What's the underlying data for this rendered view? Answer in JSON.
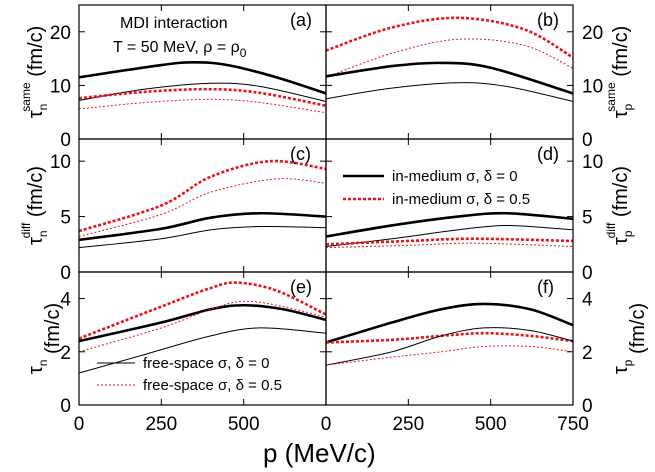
{
  "chart_data": {
    "type": "line",
    "x_axis": {
      "label": "p (MeV/c)",
      "range": [
        0,
        750
      ],
      "ticks": [
        0,
        250,
        500,
        750
      ],
      "left_col_tick_labels": [
        "0",
        "250",
        "500"
      ],
      "right_col_tick_labels": [
        "0",
        "250",
        "500",
        "750"
      ]
    },
    "annotation": {
      "line1": "MDI interaction",
      "line2": "T = 50 MeV, ρ = ρ",
      "line2_sub": "0"
    },
    "legend": {
      "in_medium_thick": "in-medium σ, δ = 0",
      "in_medium_dash": "in-medium σ, δ = 0.5",
      "free_thin": "free-space σ, δ = 0",
      "free_dash": "free-space σ, δ = 0.5"
    },
    "rows": [
      {
        "ylim": [
          0,
          25
        ],
        "yticks": [
          0,
          10,
          20
        ],
        "ytick_labels": [
          "0",
          "10",
          "20"
        ],
        "left_ylabel": {
          "main": "τ",
          "sub": "n",
          "sup": "same",
          "unit": " (fm/c)"
        },
        "right_ylabel": {
          "main": "τ",
          "sub": "p",
          "sup": "same",
          "unit": " (fm/c)"
        }
      },
      {
        "ylim": [
          0,
          12
        ],
        "yticks": [
          0,
          5,
          10
        ],
        "ytick_labels": [
          "0",
          "5",
          "10"
        ],
        "left_ylabel": {
          "main": "τ",
          "sub": "n",
          "sup": "diff",
          "unit": " (fm/c)"
        },
        "right_ylabel": {
          "main": "τ",
          "sub": "p",
          "sup": "diff",
          "unit": " (fm/c)"
        }
      },
      {
        "ylim": [
          0,
          5
        ],
        "yticks": [
          0,
          2,
          4
        ],
        "ytick_labels": [
          "0",
          "2",
          "4"
        ],
        "left_ylabel": {
          "main": "τ",
          "sub": "n",
          "sup": "",
          "unit": " (fm/c)"
        },
        "right_ylabel": {
          "main": "τ",
          "sub": "p",
          "sup": "",
          "unit": " (fm/c)"
        }
      }
    ],
    "panels": [
      {
        "label": "(a)",
        "row": 0,
        "col": 0,
        "series": [
          {
            "style": "in_medium_thick",
            "x": [
              0,
              250,
              350,
              450,
              600,
              750
            ],
            "y": [
              11.5,
              13.8,
              14.3,
              13.8,
              11.5,
              8.5
            ]
          },
          {
            "style": "free_thin",
            "x": [
              0,
              200,
              400,
              550,
              750
            ],
            "y": [
              7.2,
              9.3,
              10.4,
              9.8,
              7.0
            ]
          },
          {
            "style": "in_medium_dash",
            "x": [
              0,
              200,
              400,
              550,
              750
            ],
            "y": [
              7.6,
              8.8,
              9.3,
              8.6,
              6.2
            ]
          },
          {
            "style": "free_dash",
            "x": [
              0,
              200,
              400,
              550,
              750
            ],
            "y": [
              5.6,
              6.8,
              7.4,
              6.8,
              4.9
            ]
          }
        ]
      },
      {
        "label": "(b)",
        "row": 0,
        "col": 1,
        "series": [
          {
            "style": "in_medium_dash",
            "x": [
              0,
              200,
              400,
              600,
              750
            ],
            "y": [
              16.5,
              20.8,
              22.6,
              20.5,
              15.2
            ]
          },
          {
            "style": "free_dash",
            "x": [
              0,
              200,
              400,
              600,
              750
            ],
            "y": [
              11.5,
              16.0,
              18.6,
              17.5,
              13.2
            ]
          },
          {
            "style": "in_medium_thick",
            "x": [
              0,
              200,
              350,
              500,
              750
            ],
            "y": [
              11.7,
              13.6,
              14.2,
              13.3,
              8.5
            ]
          },
          {
            "style": "free_thin",
            "x": [
              0,
              200,
              400,
              550,
              750
            ],
            "y": [
              7.5,
              9.5,
              10.5,
              9.8,
              7.0
            ]
          }
        ]
      },
      {
        "label": "(c)",
        "row": 1,
        "col": 0,
        "series": [
          {
            "style": "in_medium_dash",
            "x": [
              0,
              250,
              400,
              580,
              750
            ],
            "y": [
              3.7,
              6.0,
              8.6,
              10.0,
              9.3
            ]
          },
          {
            "style": "free_dash",
            "x": [
              0,
              250,
              400,
              600,
              750
            ],
            "y": [
              3.2,
              5.2,
              7.2,
              8.4,
              8.0
            ]
          },
          {
            "style": "in_medium_thick",
            "x": [
              0,
              250,
              400,
              550,
              750
            ],
            "y": [
              2.9,
              3.9,
              4.9,
              5.3,
              5.0
            ]
          },
          {
            "style": "free_thin",
            "x": [
              0,
              250,
              400,
              550,
              750
            ],
            "y": [
              2.2,
              3.0,
              3.8,
              4.1,
              4.0
            ]
          }
        ]
      },
      {
        "label": "(d)",
        "row": 1,
        "col": 1,
        "series": [
          {
            "style": "in_medium_thick",
            "x": [
              0,
              200,
              400,
              550,
              750
            ],
            "y": [
              3.2,
              4.2,
              5.0,
              5.3,
              4.8
            ]
          },
          {
            "style": "free_thin",
            "x": [
              0,
              200,
              400,
              550,
              750
            ],
            "y": [
              2.3,
              3.0,
              3.8,
              4.2,
              3.8
            ]
          },
          {
            "style": "in_medium_dash",
            "x": [
              0,
              250,
              450,
              750
            ],
            "y": [
              2.5,
              2.8,
              3.0,
              2.8
            ]
          },
          {
            "style": "free_dash",
            "x": [
              0,
              250,
              450,
              750
            ],
            "y": [
              2.2,
              2.4,
              2.6,
              2.3
            ]
          }
        ]
      },
      {
        "label": "(e)",
        "row": 2,
        "col": 0,
        "series": [
          {
            "style": "in_medium_dash",
            "x": [
              0,
              250,
              400,
              480,
              600,
              750
            ],
            "y": [
              2.5,
              3.7,
              4.4,
              4.6,
              4.3,
              3.4
            ]
          },
          {
            "style": "in_medium_thick",
            "x": [
              0,
              250,
              400,
              500,
              620,
              750
            ],
            "y": [
              2.4,
              3.1,
              3.6,
              3.75,
              3.6,
              3.2
            ]
          },
          {
            "style": "free_dash",
            "x": [
              0,
              250,
              400,
              500,
              620,
              750
            ],
            "y": [
              2.0,
              2.9,
              3.6,
              3.9,
              3.7,
              3.3
            ]
          },
          {
            "style": "free_thin",
            "x": [
              0,
              200,
              400,
              550,
              750
            ],
            "y": [
              1.2,
              1.9,
              2.6,
              2.9,
              2.7
            ]
          }
        ]
      },
      {
        "label": "(f)",
        "row": 2,
        "col": 1,
        "series": [
          {
            "style": "in_medium_thick",
            "x": [
              0,
              200,
              350,
              480,
              620,
              750
            ],
            "y": [
              2.35,
              3.1,
              3.6,
              3.8,
              3.6,
              3.0
            ]
          },
          {
            "style": "in_medium_dash",
            "x": [
              0,
              200,
              350,
              480,
              620,
              750
            ],
            "y": [
              2.35,
              2.45,
              2.6,
              2.7,
              2.6,
              2.4
            ]
          },
          {
            "style": "free_thin",
            "x": [
              0,
              200,
              350,
              480,
              620,
              750
            ],
            "y": [
              1.5,
              2.0,
              2.6,
              2.9,
              2.8,
              2.4
            ]
          },
          {
            "style": "free_dash",
            "x": [
              0,
              200,
              350,
              480,
              620,
              750
            ],
            "y": [
              1.5,
              1.8,
              2.0,
              2.2,
              2.2,
              2.0
            ]
          }
        ]
      }
    ]
  }
}
